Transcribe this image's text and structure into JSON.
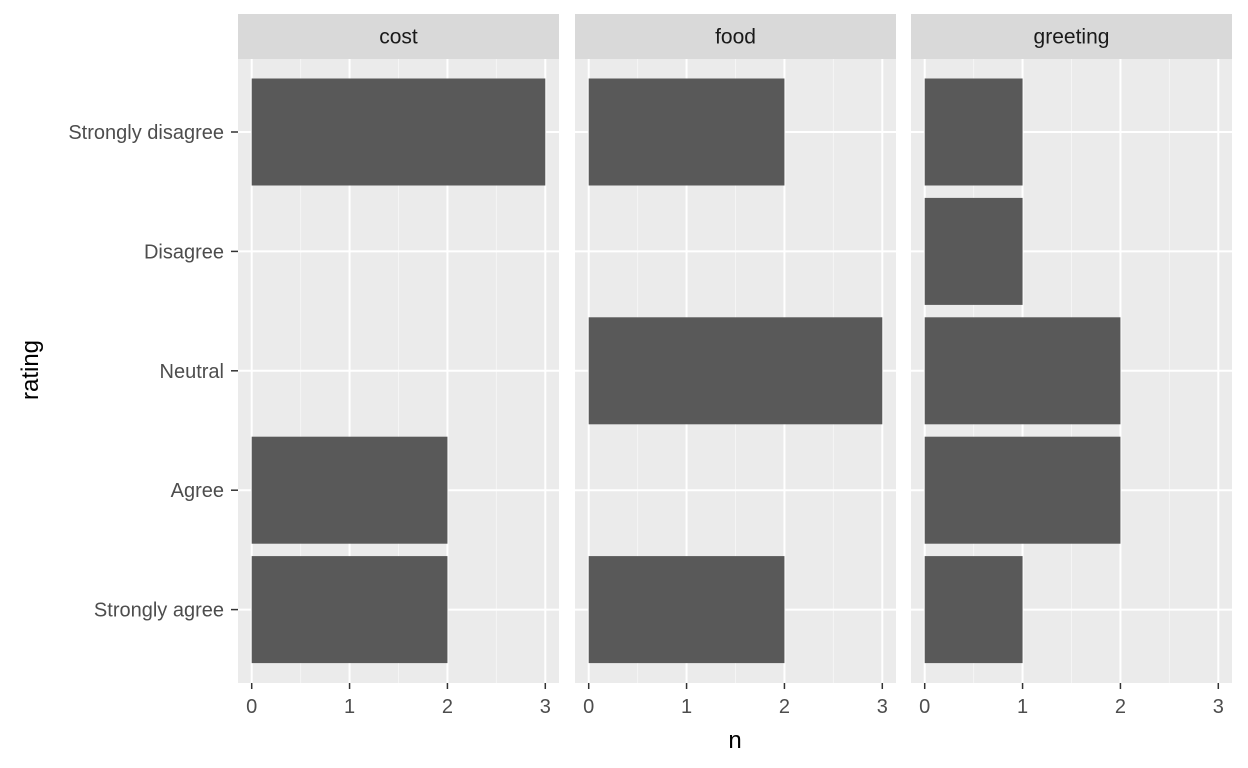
{
  "chart_data": {
    "type": "bar",
    "orientation": "horizontal",
    "facets": [
      "cost",
      "food",
      "greeting"
    ],
    "categories": [
      "Strongly disagree",
      "Disagree",
      "Neutral",
      "Agree",
      "Strongly agree"
    ],
    "series": [
      {
        "facet": "cost",
        "values": [
          3,
          0,
          0,
          2,
          2
        ]
      },
      {
        "facet": "food",
        "values": [
          2,
          0,
          3,
          0,
          2
        ]
      },
      {
        "facet": "greeting",
        "values": [
          1,
          1,
          2,
          2,
          1
        ]
      }
    ],
    "xlabel": "n",
    "ylabel": "rating",
    "xticks": [
      0,
      1,
      2,
      3
    ],
    "xlim": [
      -0.14,
      3.14
    ],
    "grid": true,
    "colors": {
      "bar": "#595959",
      "panel": "#ebebeb",
      "strip": "#d9d9d9",
      "grid_major": "#ffffff",
      "grid_minor": "#f5f5f5"
    }
  }
}
